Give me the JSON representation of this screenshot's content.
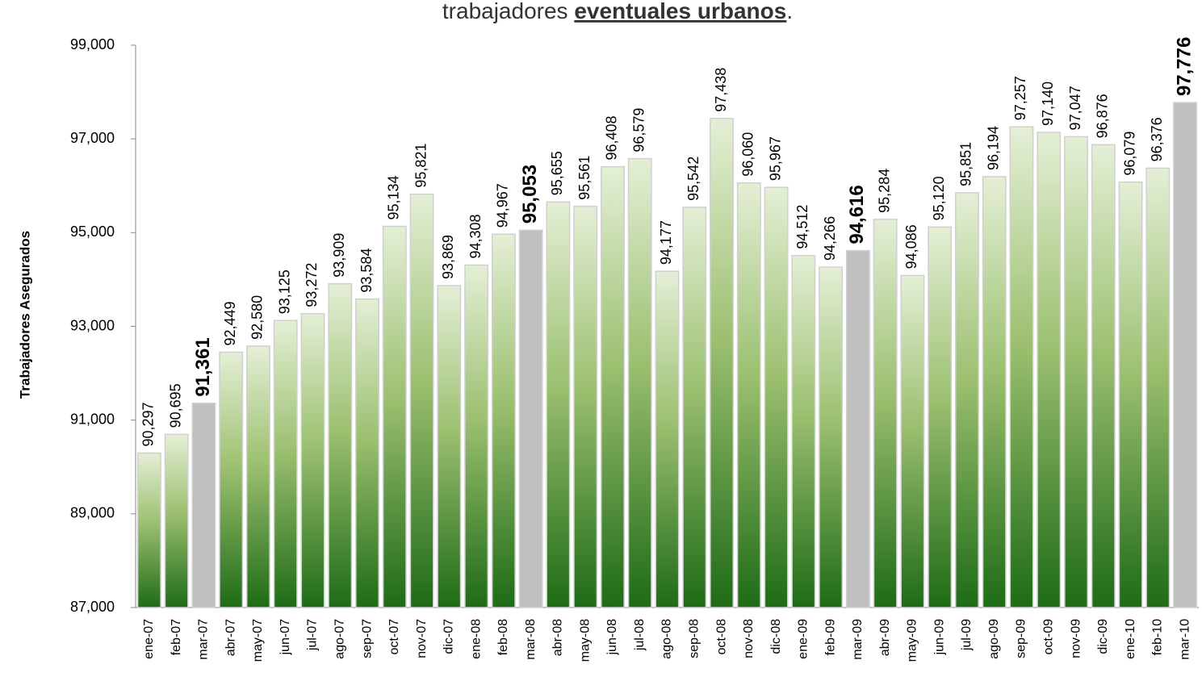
{
  "chart_data": {
    "type": "bar",
    "title_parts": [
      "trabajadores ",
      "eventuales urbanos",
      "."
    ],
    "y_label": "Trabajadores Asegurados",
    "categories": [
      "ene-07",
      "feb-07",
      "mar-07",
      "abr-07",
      "may-07",
      "jun-07",
      "jul-07",
      "ago-07",
      "sep-07",
      "oct-07",
      "nov-07",
      "dic-07",
      "ene-08",
      "feb-08",
      "mar-08",
      "abr-08",
      "may-08",
      "jun-08",
      "jul-08",
      "ago-08",
      "sep-08",
      "oct-08",
      "nov-08",
      "dic-08",
      "ene-09",
      "feb-09",
      "mar-09",
      "abr-09",
      "may-09",
      "jun-09",
      "jul-09",
      "ago-09",
      "sep-09",
      "oct-09",
      "nov-09",
      "dic-09",
      "ene-10",
      "feb-10",
      "mar-10"
    ],
    "values": [
      90297,
      90695,
      91361,
      92449,
      92580,
      93125,
      93272,
      93909,
      93584,
      95134,
      95821,
      93869,
      94308,
      94967,
      95053,
      95655,
      95561,
      96408,
      96579,
      94177,
      95542,
      97438,
      96060,
      95967,
      94512,
      94266,
      94616,
      95284,
      94086,
      95120,
      95851,
      96194,
      97257,
      97140,
      97047,
      96876,
      96079,
      96376,
      97776
    ],
    "value_labels": [
      "90,297",
      "90,695",
      "91,361",
      "92,449",
      "92,580",
      "93,125",
      "93,272",
      "93,909",
      "93,584",
      "95,134",
      "95,821",
      "93,869",
      "94,308",
      "94,967",
      "95,053",
      "95,655",
      "95,561",
      "96,408",
      "96,579",
      "94,177",
      "95,542",
      "97,438",
      "96,060",
      "95,967",
      "94,512",
      "94,266",
      "94,616",
      "95,284",
      "94,086",
      "95,120",
      "95,851",
      "96,194",
      "97,257",
      "97,140",
      "97,047",
      "96,876",
      "96,079",
      "96,376",
      "97,776"
    ],
    "color": "#1e6b16",
    "highlight": [
      2,
      14,
      26,
      38
    ],
    "highlight_color": "#c0c0c0",
    "ylim": [
      87000,
      99000
    ],
    "yticks": [
      {
        "value": 87000,
        "label": "87,000"
      },
      {
        "value": 89000,
        "label": "89,000"
      },
      {
        "value": 91000,
        "label": "91,000"
      },
      {
        "value": 93000,
        "label": "93,000"
      },
      {
        "value": 95000,
        "label": "95,000"
      },
      {
        "value": 97000,
        "label": "97,000"
      },
      {
        "value": 99000,
        "label": "99,000"
      }
    ],
    "grid": false
  }
}
